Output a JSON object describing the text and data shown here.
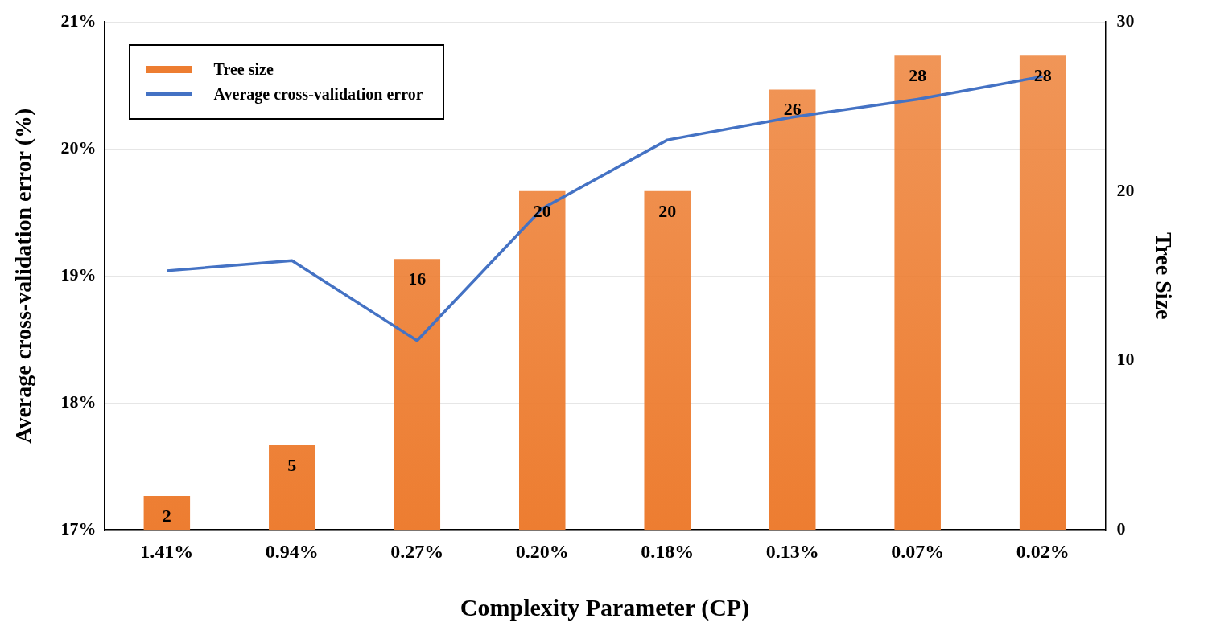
{
  "chart_data": {
    "type": "bar",
    "xlabel": "Complexity Parameter (CP)",
    "ylabel": "Average cross-validation error (%)",
    "y2label": "Tree Size",
    "categories": [
      "1.41%",
      "0.94%",
      "0.27%",
      "0.20%",
      "0.18%",
      "0.13%",
      "0.07%",
      "0.02%"
    ],
    "series": [
      {
        "name": "Tree size",
        "axis": "y2",
        "color": "#ed7d31",
        "values": [
          2,
          5,
          16,
          20,
          20,
          26,
          28,
          28
        ],
        "value_labels": [
          "2",
          "5",
          "16",
          "20",
          "20",
          "26",
          "28",
          "28"
        ]
      },
      {
        "name": "Average cross-validation error",
        "type": "line",
        "axis": "y",
        "color": "#4472c4",
        "values": [
          19.04,
          19.12,
          18.49,
          19.53,
          20.07,
          20.25,
          20.39,
          20.57
        ]
      }
    ],
    "ylim": [
      17,
      21
    ],
    "yticks": [
      {
        "value": 17,
        "label": "17%"
      },
      {
        "value": 18,
        "label": "18%"
      },
      {
        "value": 19,
        "label": "19%"
      },
      {
        "value": 20,
        "label": "20%"
      },
      {
        "value": 21,
        "label": "21%"
      }
    ],
    "y2lim": [
      0,
      30
    ],
    "y2ticks": [
      0,
      10,
      20,
      30
    ],
    "grid": "y",
    "legend": "top left",
    "marker": "none"
  }
}
